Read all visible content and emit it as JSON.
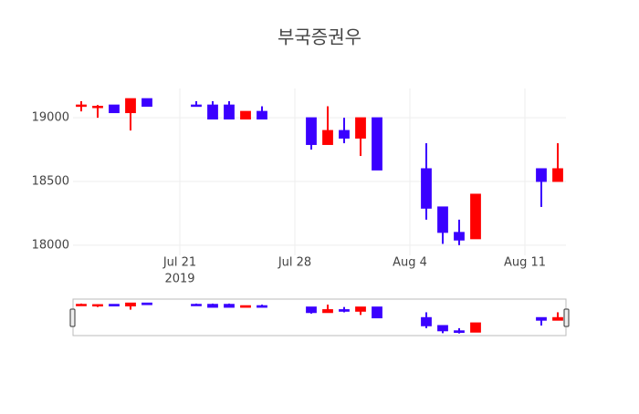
{
  "chart_data": {
    "type": "candlestick",
    "title": "부국증권우",
    "x": [
      "2019-07-15",
      "2019-07-16",
      "2019-07-17",
      "2019-07-18",
      "2019-07-19",
      "2019-07-22",
      "2019-07-23",
      "2019-07-24",
      "2019-07-25",
      "2019-07-26",
      "2019-07-29",
      "2019-07-30",
      "2019-07-31",
      "2019-08-01",
      "2019-08-02",
      "2019-08-05",
      "2019-08-06",
      "2019-08-07",
      "2019-08-08",
      "2019-08-12",
      "2019-08-13"
    ],
    "open": [
      19090,
      19080,
      19100,
      19040,
      19150,
      19100,
      19100,
      19100,
      18990,
      19050,
      19000,
      18790,
      18900,
      18840,
      19000,
      18600,
      18300,
      18100,
      18050,
      18600,
      18500
    ],
    "high": [
      19130,
      19100,
      19100,
      19150,
      19150,
      19130,
      19130,
      19130,
      19050,
      19090,
      19000,
      19090,
      19000,
      19000,
      19000,
      18800,
      18300,
      18200,
      18400,
      18600,
      18800
    ],
    "low": [
      19050,
      19000,
      19040,
      18900,
      19090,
      19090,
      18990,
      18990,
      18990,
      18990,
      18750,
      18790,
      18800,
      18700,
      18590,
      18200,
      18010,
      18000,
      18050,
      18300,
      18500
    ],
    "close": [
      19100,
      19090,
      19040,
      19150,
      19090,
      19090,
      18990,
      18990,
      19050,
      18990,
      18790,
      18900,
      18840,
      19000,
      18590,
      18290,
      18100,
      18040,
      18400,
      18500,
      18600
    ],
    "increasing_color": "#ff0000",
    "decreasing_color": "#3a00ff",
    "xlim": [
      "2019-07-14T12:00:00Z",
      "2019-08-13T12:00:00Z"
    ],
    "xticks": [
      {
        "value": "2019-07-21",
        "label": "Jul 21"
      },
      {
        "value": "2019-07-28",
        "label": "Jul 28"
      },
      {
        "value": "2019-08-04",
        "label": "Aug 4"
      },
      {
        "value": "2019-08-11",
        "label": "Aug 11"
      }
    ],
    "xtick_year": "2019",
    "ylim": [
      17920,
      19230
    ],
    "yticks": [
      18000,
      18500,
      19000
    ],
    "grid": true,
    "rangeslider": true
  }
}
